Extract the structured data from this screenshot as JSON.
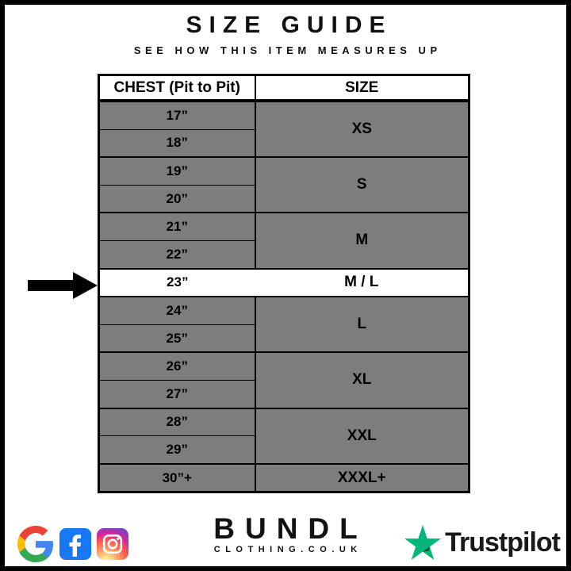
{
  "title": "SIZE GUIDE",
  "subtitle": "SEE HOW THIS ITEM MEASURES UP",
  "table": {
    "columns": [
      "CHEST (Pit to Pit)",
      "SIZE"
    ],
    "groups": [
      {
        "size": "XS",
        "chest": [
          "17”",
          "18”"
        ],
        "highlighted": false
      },
      {
        "size": "S",
        "chest": [
          "19”",
          "20”"
        ],
        "highlighted": false
      },
      {
        "size": "M",
        "chest": [
          "21”",
          "22”"
        ],
        "highlighted": false
      },
      {
        "size": "M / L",
        "chest": [
          "23”"
        ],
        "highlighted": true
      },
      {
        "size": "L",
        "chest": [
          "24”",
          "25”"
        ],
        "highlighted": false
      },
      {
        "size": "XL",
        "chest": [
          "26”",
          "27”"
        ],
        "highlighted": false
      },
      {
        "size": "XXL",
        "chest": [
          "28”",
          "29”"
        ],
        "highlighted": false
      },
      {
        "size": "XXXL+",
        "chest": [
          "30”+"
        ],
        "highlighted": false
      }
    ]
  },
  "footer": {
    "brand_name": "BUNDL",
    "brand_domain": "CLOTHING.CO.UK",
    "trustpilot_label": "Trustpilot",
    "social_icons": [
      "google",
      "facebook",
      "instagram"
    ]
  },
  "colors": {
    "row_gray": "#7d7d7d",
    "highlight_row": "#ffffff",
    "border_black": "#000000",
    "trustpilot_green": "#00b67a",
    "trustpilot_dark_green": "#005128",
    "facebook_blue": "#1877f2",
    "google_blue": "#4285F4",
    "google_red": "#EA4335",
    "google_yellow": "#FBBC05",
    "google_green": "#34A853"
  }
}
